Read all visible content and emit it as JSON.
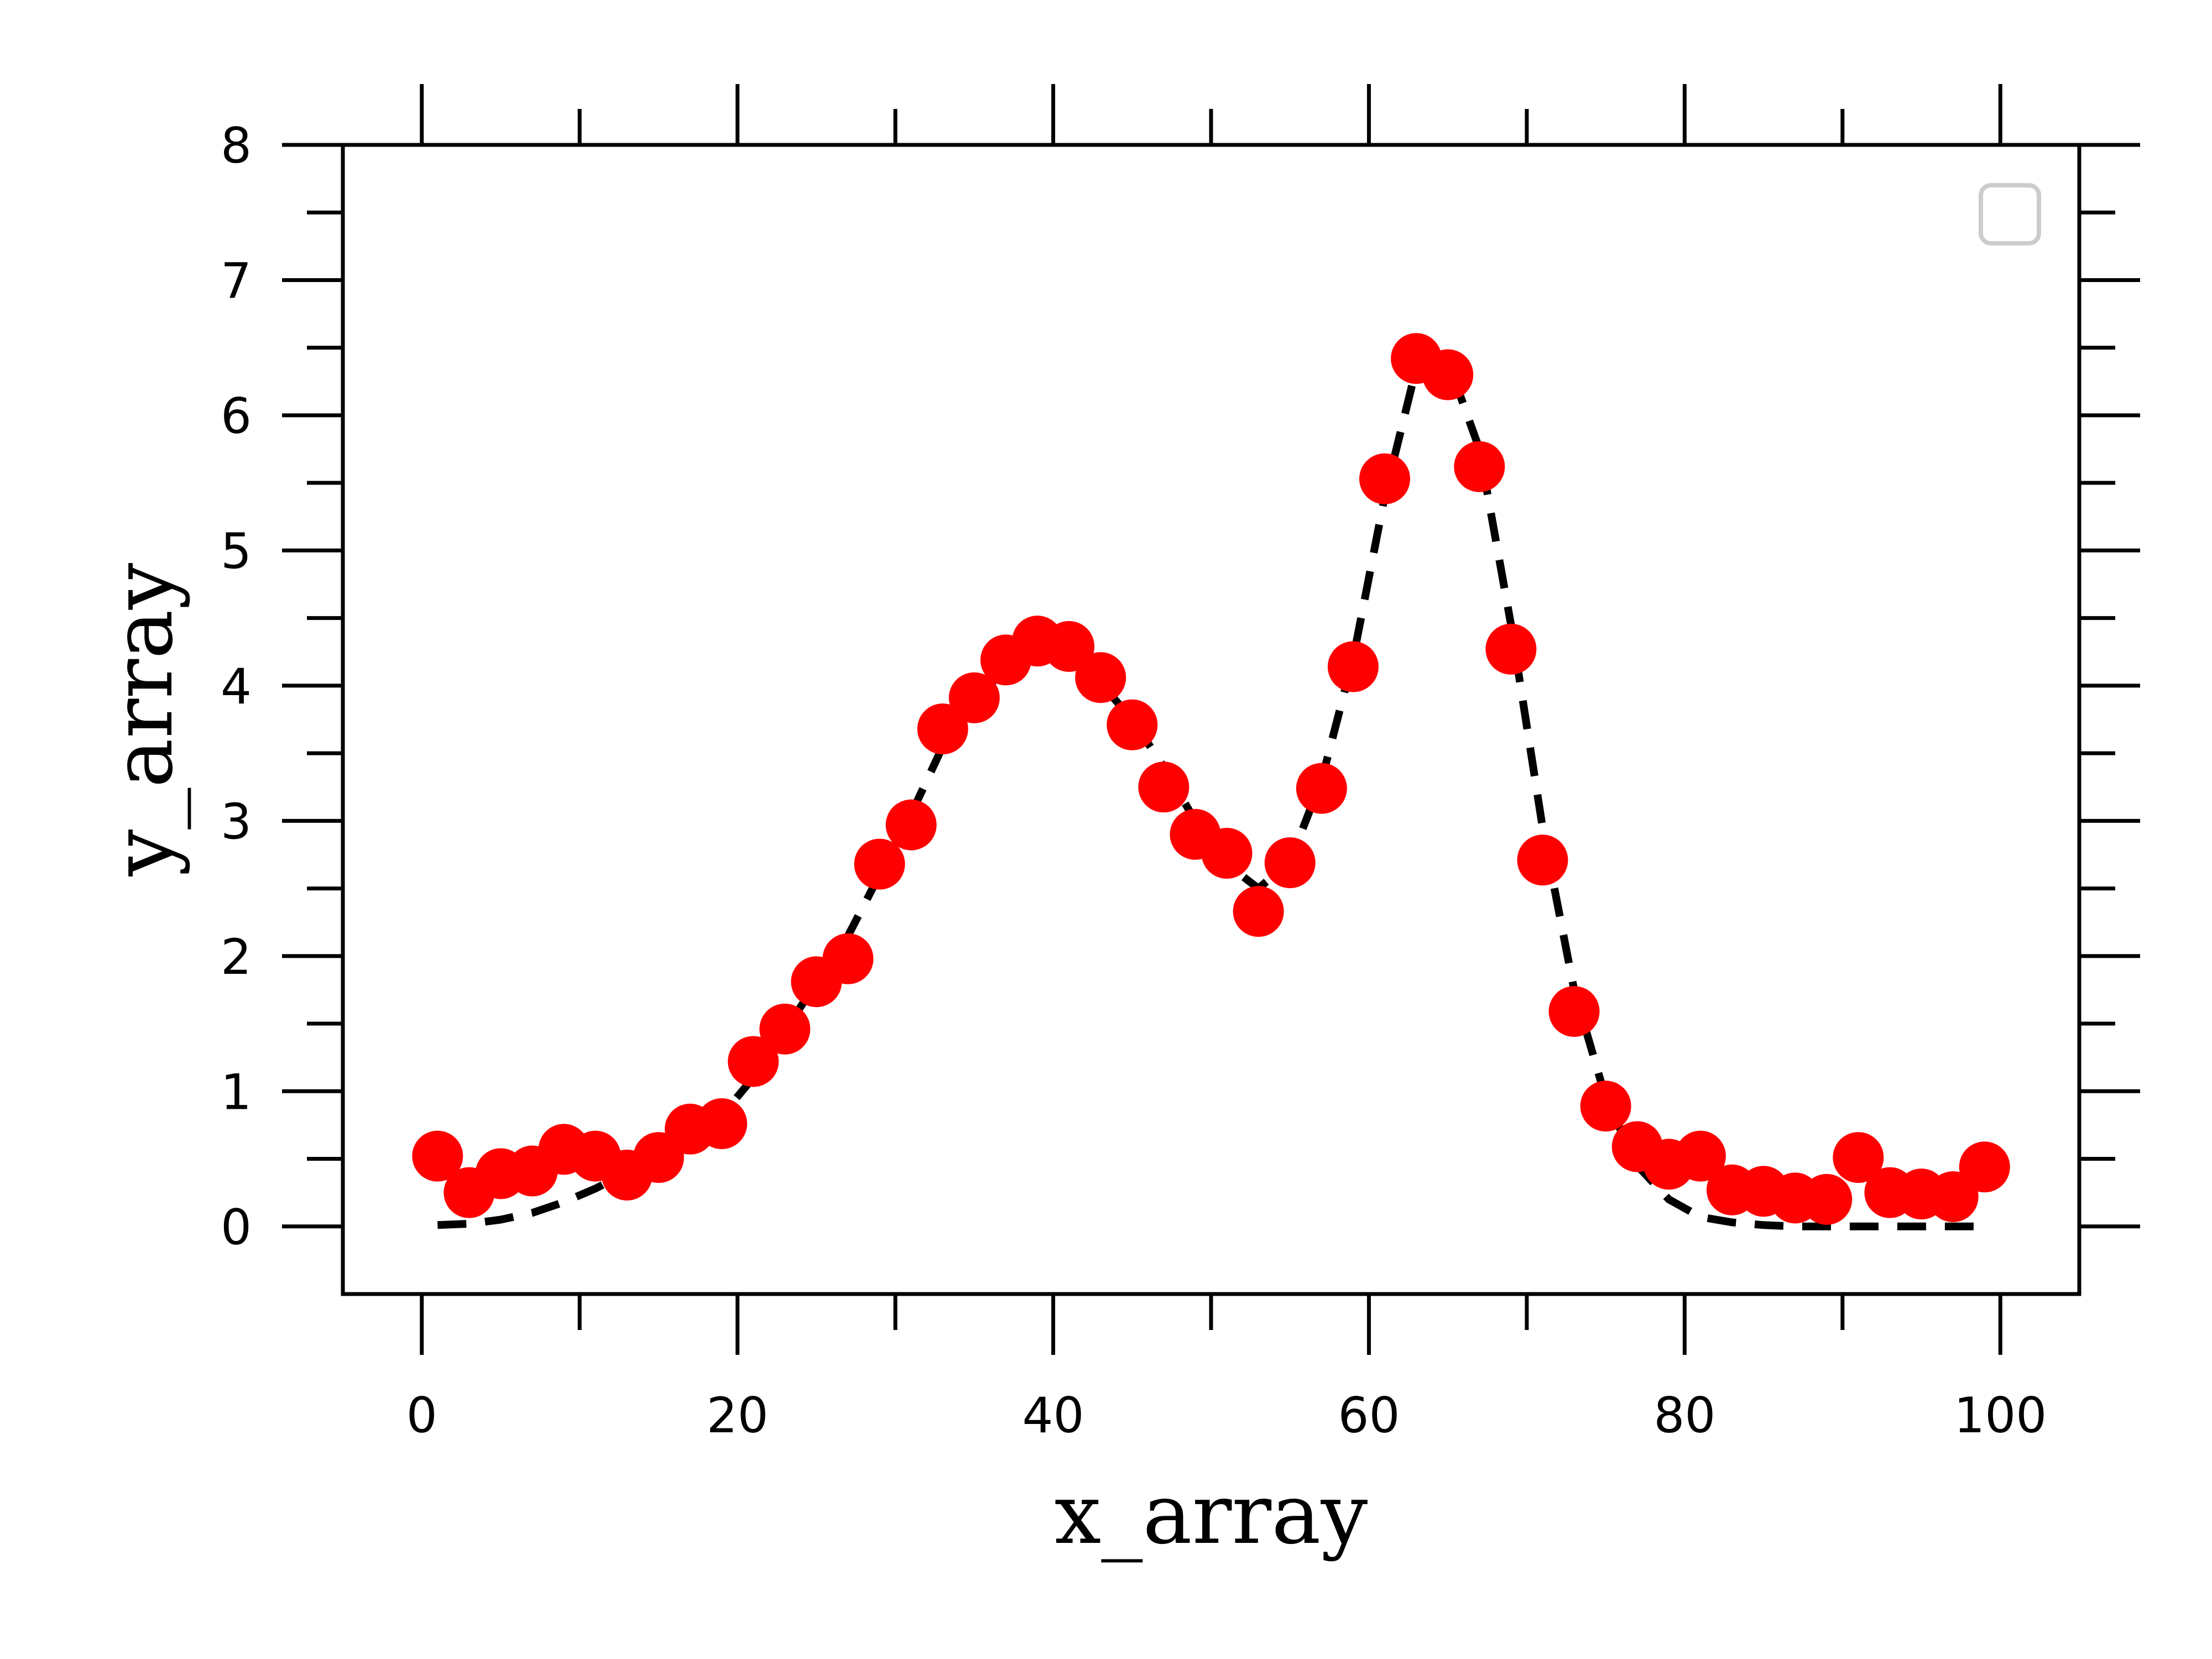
{
  "chart_data": {
    "type": "scatter",
    "xlabel": "x_array",
    "ylabel": "y_array",
    "xlim": [
      -5,
      105
    ],
    "ylim": [
      -0.5,
      8
    ],
    "x_ticks": [
      0,
      20,
      40,
      60,
      80,
      100
    ],
    "x_tick_labels": [
      "0",
      "20",
      "40",
      "60",
      "80",
      "100"
    ],
    "x_minor_ticks": [
      10,
      30,
      50,
      70,
      90
    ],
    "y_ticks": [
      0,
      1,
      2,
      3,
      4,
      5,
      6,
      7,
      8
    ],
    "y_tick_labels": [
      "0",
      "1",
      "2",
      "3",
      "4",
      "5",
      "6",
      "7",
      "8"
    ],
    "y_minor_ticks": [
      0.5,
      1.5,
      2.5,
      3.5,
      4.5,
      5.5,
      6.5,
      7.5
    ],
    "grid": false,
    "legend": {
      "placement": "top-right",
      "entries": []
    },
    "colors": {
      "points": "#ff0000",
      "fit": "#000000",
      "legend_border": "#cccccc"
    },
    "series": [
      {
        "style": "points",
        "x": [
          1,
          3,
          5,
          7,
          9,
          11,
          13,
          15,
          17,
          19,
          21,
          23,
          25,
          27,
          29,
          31,
          33,
          35,
          37,
          39,
          41,
          43,
          45,
          47,
          49,
          51,
          53,
          55,
          57,
          59,
          61,
          63,
          65,
          67,
          69,
          71,
          73,
          75,
          77,
          79,
          81,
          83,
          85,
          87,
          89,
          91,
          93,
          95,
          97,
          99
        ],
        "y": [
          0.52,
          0.25,
          0.39,
          0.41,
          0.57,
          0.52,
          0.38,
          0.51,
          0.72,
          0.76,
          1.22,
          1.46,
          1.81,
          1.98,
          2.68,
          2.97,
          3.68,
          3.91,
          4.19,
          4.33,
          4.29,
          4.06,
          3.71,
          3.25,
          2.9,
          2.76,
          2.33,
          2.69,
          3.24,
          4.14,
          5.53,
          6.42,
          6.3,
          5.62,
          4.27,
          2.71,
          1.59,
          0.89,
          0.59,
          0.46,
          0.52,
          0.27,
          0.26,
          0.21,
          0.2,
          0.51,
          0.25,
          0.24,
          0.22,
          0.44
        ]
      },
      {
        "style": "dashed-line",
        "x": [
          1,
          3,
          5,
          7,
          9,
          11,
          13,
          15,
          17,
          19,
          21,
          23,
          25,
          27,
          29,
          31,
          33,
          35,
          37,
          39,
          41,
          43,
          45,
          47,
          49,
          51,
          53,
          55,
          57,
          59,
          61,
          63,
          65,
          67,
          69,
          71,
          73,
          75,
          77,
          79,
          81,
          83,
          85,
          87,
          89,
          91,
          93,
          95,
          97,
          99
        ],
        "y": [
          0.01,
          0.02,
          0.05,
          0.1,
          0.18,
          0.28,
          0.4,
          0.52,
          0.65,
          0.82,
          1.1,
          1.45,
          1.8,
          2.15,
          2.6,
          3.05,
          3.55,
          3.9,
          4.12,
          4.22,
          4.18,
          4.02,
          3.75,
          3.4,
          3.0,
          2.68,
          2.5,
          2.7,
          3.3,
          4.2,
          5.4,
          6.35,
          6.4,
          5.75,
          4.45,
          2.95,
          1.75,
          0.95,
          0.45,
          0.2,
          0.07,
          0.03,
          0.01,
          0.0,
          0.0,
          0.0,
          0.0,
          0.0,
          0.0,
          0.0
        ]
      }
    ]
  }
}
